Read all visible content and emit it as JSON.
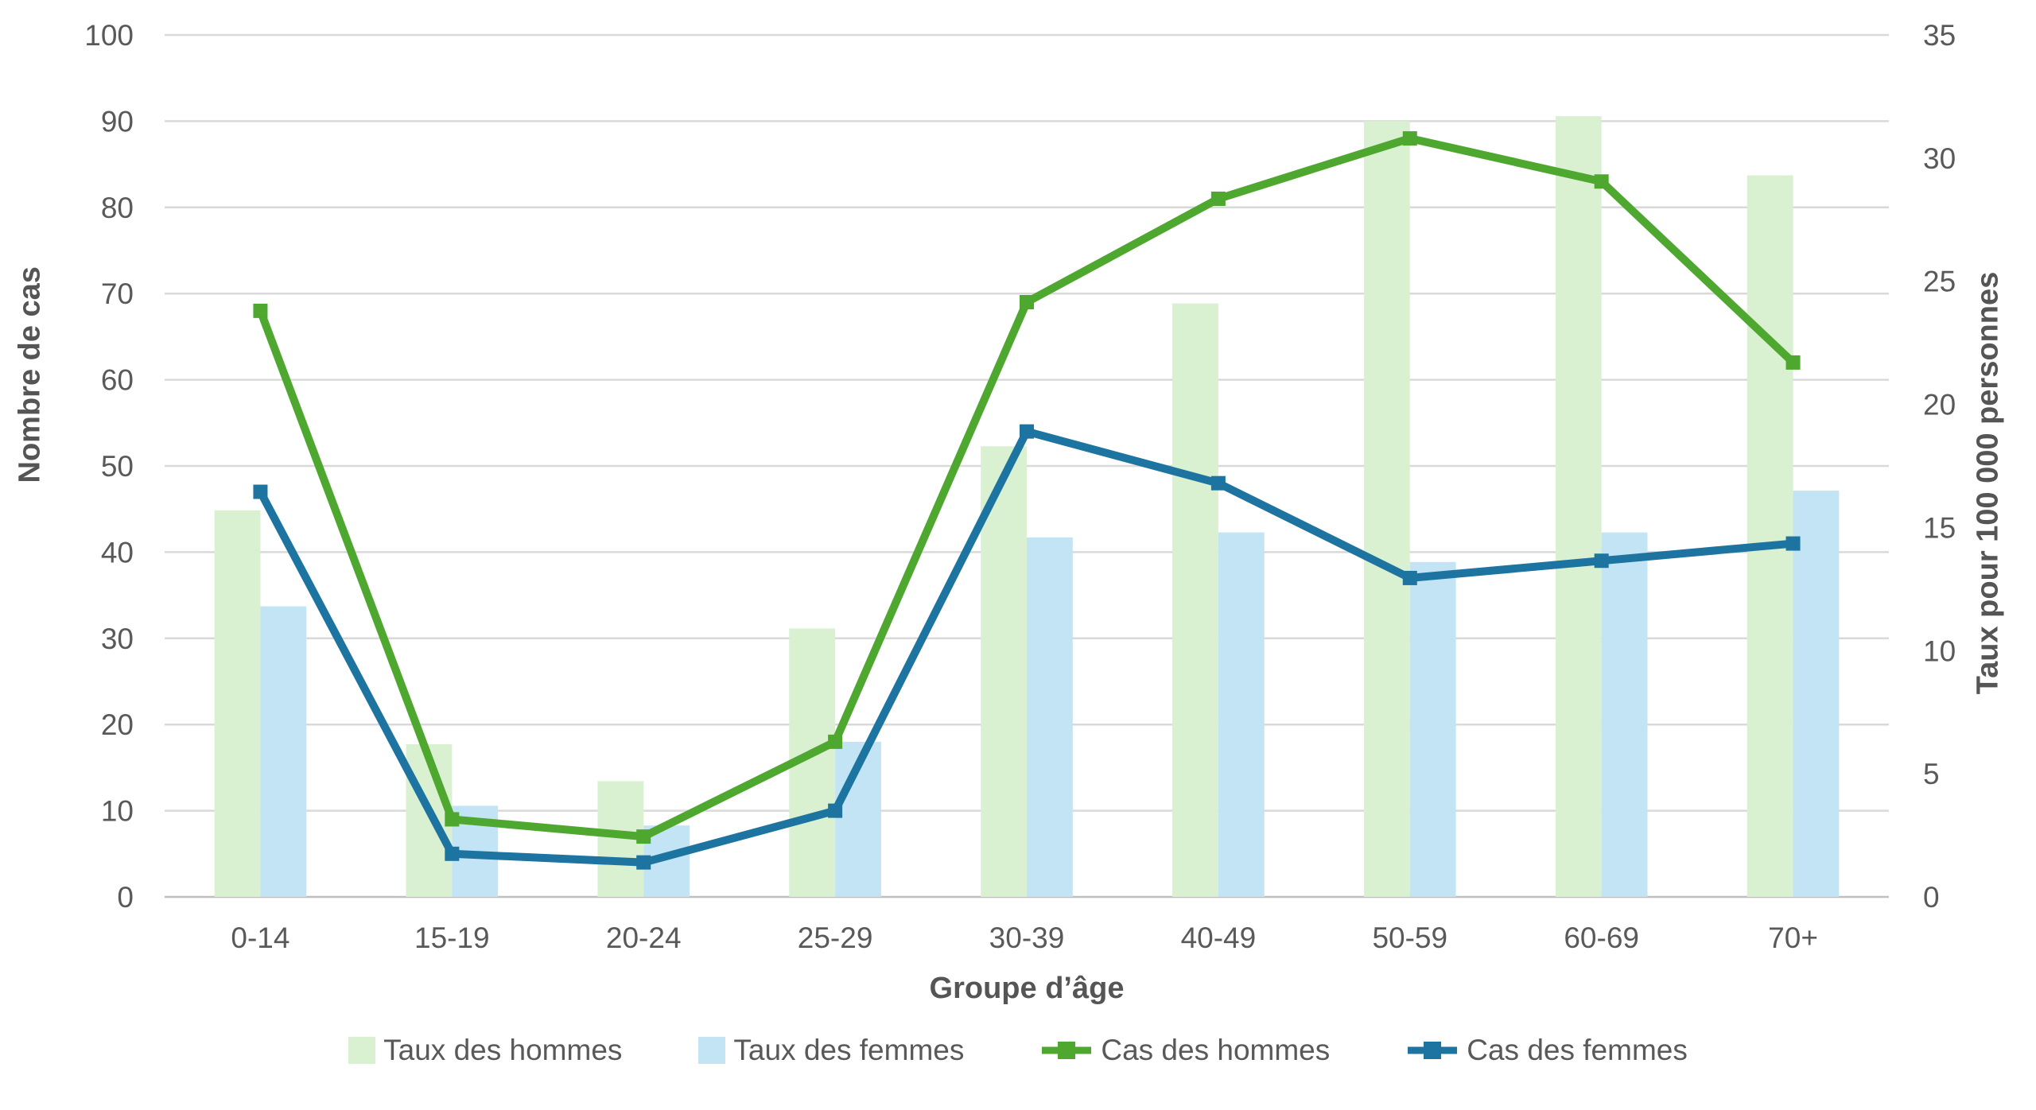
{
  "chart_data": {
    "type": "combo",
    "categories": [
      "0-14",
      "15-19",
      "20-24",
      "25-29",
      "30-39",
      "40-49",
      "50-59",
      "60-69",
      "70+"
    ],
    "series": [
      {
        "name": "Taux des hommes",
        "type": "bar",
        "axis": "right",
        "color": "#d9f0d1",
        "values": [
          15.7,
          6.2,
          4.7,
          10.9,
          18.3,
          24.1,
          31.5,
          31.7,
          29.3
        ]
      },
      {
        "name": "Taux des femmes",
        "type": "bar",
        "axis": "right",
        "color": "#c2e4f5",
        "values": [
          11.8,
          3.7,
          2.9,
          6.3,
          14.6,
          14.8,
          13.6,
          14.8,
          16.5
        ]
      },
      {
        "name": "Cas des hommes",
        "type": "line",
        "axis": "left",
        "color": "#4ea72e",
        "values": [
          68,
          9,
          7,
          18,
          69,
          81,
          88,
          83,
          62
        ]
      },
      {
        "name": "Cas des femmes",
        "type": "line",
        "axis": "left",
        "color": "#1d74a0",
        "values": [
          47,
          5,
          4,
          10,
          54,
          48,
          37,
          39,
          41
        ]
      }
    ],
    "left_axis": {
      "title": "Nombre de cas",
      "min": 0,
      "max": 100,
      "step": 10
    },
    "right_axis": {
      "title": "Taux pour 100 000 personnes",
      "min": 0,
      "max": 35,
      "step": 5
    },
    "x_axis": {
      "title": "Groupe d’âge"
    },
    "grid": true,
    "legend_position": "bottom",
    "colors": {
      "gridline": "#d9d9d9",
      "baseline": "#bfbfbf",
      "tick_text": "#595959",
      "title_text": "#555555",
      "background": "#ffffff"
    }
  }
}
